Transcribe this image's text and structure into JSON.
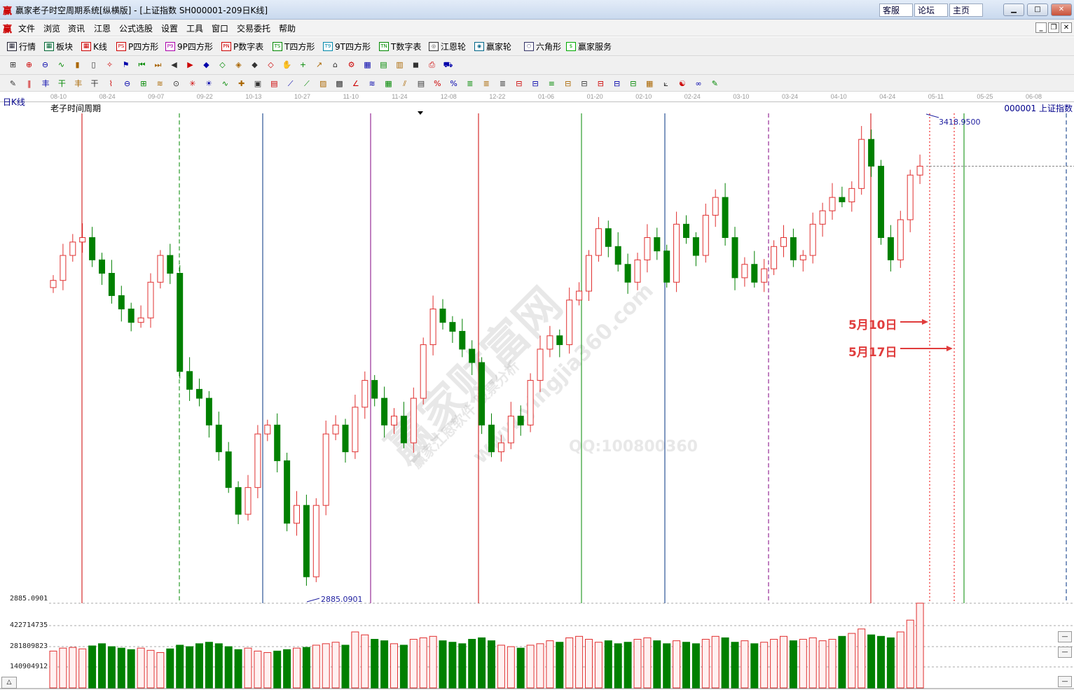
{
  "window": {
    "title": "赢家老子时空周期系统[纵横版] - [上证指数  SH000001-209日K线]",
    "logo": "赢",
    "buttons": [
      "客服",
      "论坛",
      "主页"
    ]
  },
  "menu": [
    "文件",
    "浏览",
    "资讯",
    "江恩",
    "公式选股",
    "设置",
    "工具",
    "窗口",
    "交易委托",
    "帮助"
  ],
  "toolbar1": [
    {
      "label": "行情",
      "icon": "table-icon"
    },
    {
      "label": "板块",
      "icon": "blocks-icon"
    },
    {
      "label": "K线",
      "icon": "candlestick-icon"
    },
    {
      "label": "P四方形",
      "icon": "ps-icon",
      "badge": "PS"
    },
    {
      "label": "9P四方形",
      "icon": "p9-icon",
      "badge": "P9"
    },
    {
      "label": "P数字表",
      "icon": "pn-icon",
      "badge": "PN"
    },
    {
      "label": "T四方形",
      "icon": "ts-icon",
      "badge": "TS"
    },
    {
      "label": "9T四方形",
      "icon": "t9-icon",
      "badge": "T9"
    },
    {
      "label": "T数字表",
      "icon": "tn-icon",
      "badge": "TN"
    },
    {
      "label": "江恩轮",
      "icon": "gann-wheel-icon",
      "badge": "◎"
    },
    {
      "label": "赢家轮",
      "icon": "winner-wheel-icon",
      "badge": "◉"
    },
    {
      "label": "六角形",
      "icon": "hexagon-icon",
      "badge": "⬡"
    },
    {
      "label": "赢家服务",
      "icon": "dollar-icon",
      "badge": "$"
    }
  ],
  "toolbar2": [
    "period-icon",
    "zoom-in-icon",
    "zoom-out-icon",
    "line-chart-icon",
    "bar-chart-icon",
    "candle-icon",
    "compass-icon",
    "flag-icon",
    "first-icon",
    "last-icon",
    "prev-icon",
    "next-icon",
    "diamond1-icon",
    "diamond2-icon",
    "diamond3-icon",
    "diamond4-icon",
    "diamond5-icon",
    "hand-icon",
    "crosshair-icon",
    "trend-icon",
    "gift-icon",
    "network-icon",
    "calendar-icon",
    "calculator-icon",
    "notes-icon",
    "save-icon",
    "print-icon",
    "truck-icon"
  ],
  "toolbar3": [
    "pen-icon",
    "hash1-icon",
    "tree1-icon",
    "tree2-icon",
    "tree3-icon",
    "tree4-icon",
    "fan-icon",
    "circle-icon",
    "grid-icon",
    "arrows-icon",
    "target-icon",
    "star-icon",
    "sun-icon",
    "wave-icon",
    "cross-icon",
    "box1-icon",
    "box2-icon",
    "speed-line-icon",
    "fan-line-icon",
    "fan-box-icon",
    "gann-box-icon",
    "angle-icon",
    "wave2-icon",
    "grid2-icon",
    "parallel-icon",
    "table2-icon",
    "percent-icon",
    "percent2-icon",
    "fib-icon",
    "fib2-icon",
    "fib3-icon",
    "ruler-icon",
    "cycle-icon",
    "cycle2-icon",
    "cycle3-icon",
    "cycle4-icon",
    "cycle5-icon",
    "cycle6-icon",
    "cycle7-icon",
    "cycle8-icon",
    "grid3-icon",
    "chart-icon",
    "yin-yang-icon",
    "infinity-icon"
  ],
  "chart": {
    "period_label": "日K线",
    "indicator_title": "老子时间周期",
    "symbol": "000001 上证指数",
    "dates": [
      "08-10",
      "08-24",
      "09-07",
      "09-22",
      "10-13",
      "10-27",
      "11-10",
      "11-24",
      "12-08",
      "12-22",
      "01-06",
      "01-20",
      "02-10",
      "02-24",
      "03-10",
      "03-24",
      "04-10",
      "04-24",
      "05-11",
      "05-25",
      "06-08"
    ],
    "high_label": "3418.9500",
    "low_label": "2885.0901",
    "low_axis_label": "2885.0901",
    "volume_axis": [
      "422714735",
      "281809823",
      "140904912"
    ],
    "annotations": [
      "5月10日",
      "5月17日"
    ],
    "up_color": "#e03030",
    "down_color": "#008000",
    "watermark": [
      "赢家财富网",
      "赢家江恩软件 股票分析",
      "www.yingjia360.com",
      "QQ:100800360"
    ]
  },
  "chart_data": {
    "type": "candlestick",
    "price_range": [
      2885.0901,
      3418.95
    ],
    "closes": [
      3242,
      3270,
      3285,
      3290,
      3265,
      3250,
      3225,
      3210,
      3195,
      3200,
      3240,
      3270,
      3250,
      3140,
      3120,
      3110,
      3080,
      3050,
      3010,
      2980,
      3010,
      3070,
      3080,
      3040,
      2970,
      2990,
      2910,
      2990,
      3070,
      3080,
      3050,
      3100,
      3130,
      3110,
      3080,
      3090,
      3060,
      3110,
      3170,
      3210,
      3195,
      3185,
      3165,
      3150,
      3080,
      3050,
      3060,
      3090,
      3080,
      3130,
      3165,
      3180,
      3170,
      3220,
      3230,
      3270,
      3300,
      3280,
      3260,
      3240,
      3265,
      3290,
      3275,
      3240,
      3305,
      3290,
      3270,
      3315,
      3335,
      3290,
      3245,
      3260,
      3240,
      3255,
      3280,
      3290,
      3265,
      3270,
      3305,
      3320,
      3335,
      3330,
      3345,
      3400,
      3370,
      3290,
      3265,
      3310,
      3360,
      3370
    ],
    "volumes_million": [
      250,
      270,
      275,
      265,
      285,
      300,
      280,
      270,
      260,
      270,
      255,
      240,
      265,
      290,
      280,
      300,
      310,
      300,
      280,
      260,
      270,
      250,
      240,
      250,
      260,
      270,
      275,
      290,
      300,
      310,
      290,
      380,
      360,
      330,
      320,
      300,
      290,
      330,
      340,
      350,
      320,
      310,
      300,
      330,
      340,
      320,
      290,
      280,
      270,
      290,
      300,
      320,
      310,
      340,
      350,
      330,
      310,
      320,
      300,
      310,
      330,
      340,
      320,
      300,
      320,
      310,
      300,
      330,
      350,
      340,
      310,
      320,
      300,
      310,
      330,
      350,
      320,
      330,
      340,
      320,
      330,
      350,
      370,
      400,
      360,
      350,
      340,
      380,
      460,
      575
    ]
  }
}
